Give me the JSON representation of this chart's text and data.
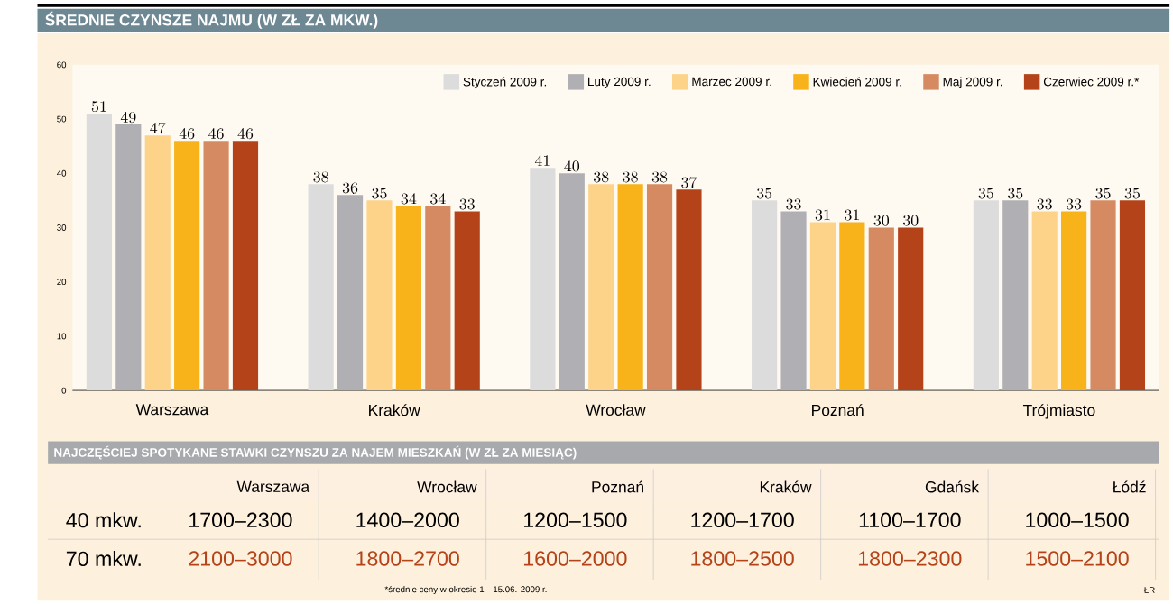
{
  "chart_data": {
    "type": "bar",
    "title": "ŚREDNIE CZYNSZE NAJMU (W ZŁ ZA MKW.)",
    "categories": [
      "Warszawa",
      "Kraków",
      "Wrocław",
      "Poznań",
      "Trójmiasto"
    ],
    "series": [
      {
        "name": "Styczeń 2009 r.",
        "color": "#dcdcdc",
        "values": [
          51,
          38,
          41,
          35,
          35
        ]
      },
      {
        "name": "Luty 2009 r.",
        "color": "#b0b0b4",
        "values": [
          49,
          36,
          40,
          33,
          35
        ]
      },
      {
        "name": "Marzec 2009 r.",
        "color": "#fdd38a",
        "values": [
          47,
          35,
          38,
          31,
          33
        ]
      },
      {
        "name": "Kwiecień 2009 r.",
        "color": "#f8b21a",
        "values": [
          46,
          34,
          38,
          31,
          33
        ]
      },
      {
        "name": "Maj 2009 r.",
        "color": "#d68a62",
        "values": [
          46,
          34,
          38,
          30,
          35
        ]
      },
      {
        "name": "Czerwiec 2009 r.*",
        "color": "#b5431a",
        "values": [
          46,
          33,
          37,
          30,
          35
        ]
      }
    ],
    "ylim": [
      0,
      60
    ],
    "yticks": [
      0,
      10,
      20,
      30,
      40,
      50,
      60
    ],
    "data_labels": true,
    "legend": "top right",
    "grid": false,
    "annotations": [
      "NAJCZĘŚCIEJ SPOTYKANE STAWKI CZYNSZU ZA NAJEM MIESZKAŃ (W ZŁ ZA MIESIĄC)",
      "Warszawa",
      "Wrocław",
      "Poznań",
      "Kraków",
      "Gdańsk",
      "Łódź",
      "40 mkw.",
      "1700–2300",
      "1400–2000",
      "1200–1500",
      "1200–1700",
      "1100–1700",
      "1000–1500",
      "70 mkw.",
      "2100–3000",
      "1800–2700",
      "1600–2000",
      "1800–2500",
      "1800–2300",
      "1500–2100",
      "*średnie ceny w okresie 1—15.06. 2009 r.",
      "ŁR"
    ]
  }
}
